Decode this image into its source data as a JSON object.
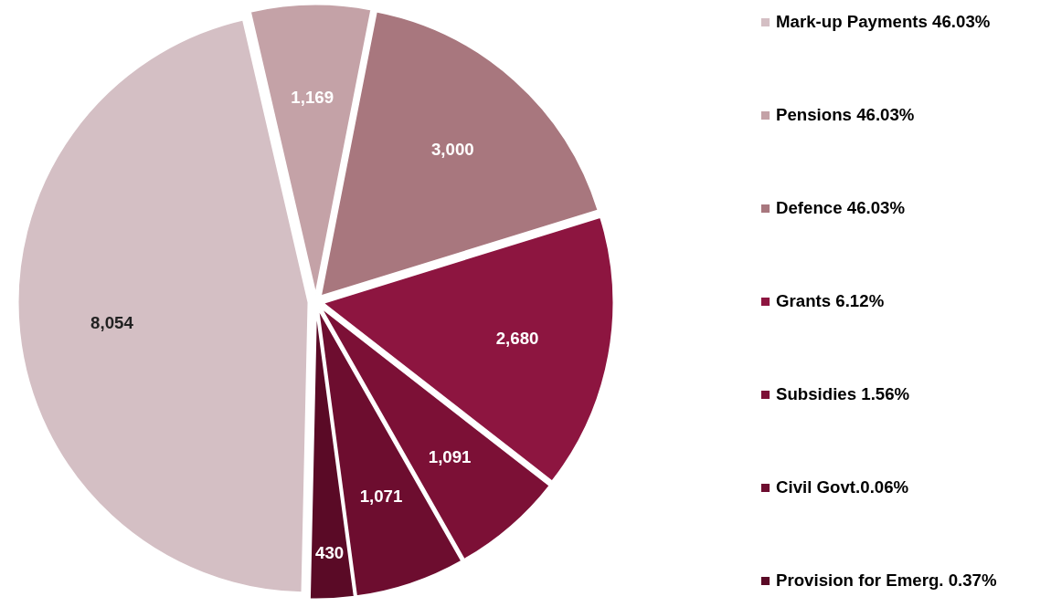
{
  "chart_data": {
    "type": "pie",
    "categories": [
      "Mark-up Payments 46.03%",
      "Pensions 46.03%",
      "Defence 46.03%",
      "Grants 6.12%",
      "Subsidies 1.56%",
      "Civil Govt.0.06%",
      "Provision for Emerg. 0.37%"
    ],
    "values": [
      8054,
      1169,
      3000,
      2680,
      1091,
      1071,
      430
    ],
    "colors": [
      "#d4bfc4",
      "#c4a2a7",
      "#a8777e",
      "#8d1540",
      "#7c1036",
      "#6d0d2f",
      "#5a0a26"
    ],
    "value_labels": [
      "8,054",
      "1,169",
      "3,000",
      "2,680",
      "1,091",
      "1,071",
      "430"
    ],
    "legend": "right"
  }
}
